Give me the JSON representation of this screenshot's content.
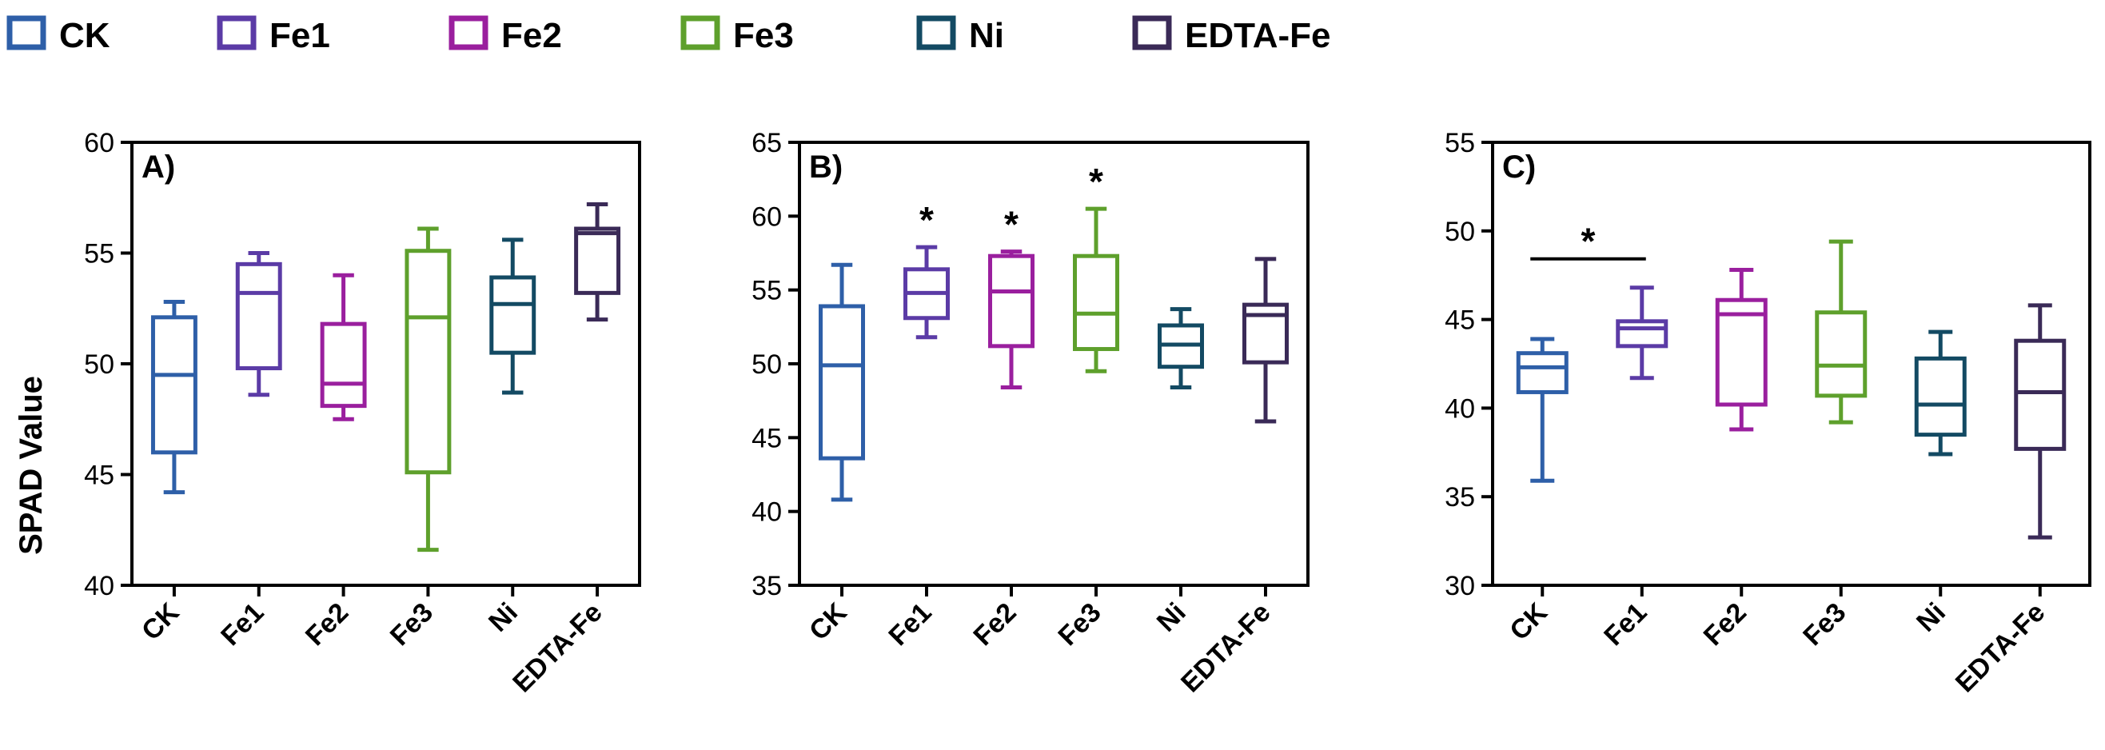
{
  "chart_data": {
    "type": "box",
    "legend": {
      "placement": "top",
      "entries": [
        {
          "name": "CK",
          "color": "#2E5FA8"
        },
        {
          "name": "Fe1",
          "color": "#5B3BA6"
        },
        {
          "name": "Fe2",
          "color": "#9A1F9E"
        },
        {
          "name": "Fe3",
          "color": "#5EA02C"
        },
        {
          "name": "Ni",
          "color": "#134A63"
        },
        {
          "name": "EDTA-Fe",
          "color": "#3A2A57"
        }
      ]
    },
    "ylabel": "SPAD Value",
    "categories": [
      "CK",
      "Fe1",
      "Fe2",
      "Fe3",
      "Ni",
      "EDTA-Fe"
    ],
    "panels": [
      {
        "label": "A)",
        "ylim": [
          40,
          60
        ],
        "yticks": [
          40,
          45,
          50,
          55,
          60
        ],
        "boxes": [
          {
            "min": 44.2,
            "q1": 46.0,
            "median": 49.5,
            "q3": 52.1,
            "max": 52.8
          },
          {
            "min": 48.6,
            "q1": 49.8,
            "median": 53.2,
            "q3": 54.5,
            "max": 55.0
          },
          {
            "min": 47.5,
            "q1": 48.1,
            "median": 49.1,
            "q3": 51.8,
            "max": 54.0
          },
          {
            "min": 41.6,
            "q1": 45.1,
            "median": 52.1,
            "q3": 55.1,
            "max": 56.1
          },
          {
            "min": 48.7,
            "q1": 50.5,
            "median": 52.7,
            "q3": 53.9,
            "max": 55.6
          },
          {
            "min": 52.0,
            "q1": 53.2,
            "median": 55.9,
            "q3": 56.1,
            "max": 57.2
          }
        ],
        "significance": []
      },
      {
        "label": "B)",
        "ylim": [
          35,
          65
        ],
        "yticks": [
          35,
          40,
          45,
          50,
          55,
          60,
          65
        ],
        "boxes": [
          {
            "min": 40.8,
            "q1": 43.6,
            "median": 49.9,
            "q3": 53.9,
            "max": 56.7
          },
          {
            "min": 51.8,
            "q1": 53.1,
            "median": 54.8,
            "q3": 56.4,
            "max": 57.9
          },
          {
            "min": 48.4,
            "q1": 51.2,
            "median": 54.9,
            "q3": 57.3,
            "max": 57.6
          },
          {
            "min": 49.5,
            "q1": 51.0,
            "median": 53.4,
            "q3": 57.3,
            "max": 60.5
          },
          {
            "min": 48.4,
            "q1": 49.8,
            "median": 51.3,
            "q3": 52.6,
            "max": 53.7
          },
          {
            "min": 46.1,
            "q1": 50.1,
            "median": 53.3,
            "q3": 54.0,
            "max": 57.1
          }
        ],
        "significance": [
          {
            "text": "*",
            "category": "Fe1"
          },
          {
            "text": "*",
            "category": "Fe2"
          },
          {
            "text": "*",
            "category": "Fe3"
          }
        ]
      },
      {
        "label": "C)",
        "ylim": [
          30,
          55
        ],
        "yticks": [
          30,
          35,
          40,
          45,
          50,
          55
        ],
        "boxes": [
          {
            "min": 35.9,
            "q1": 40.9,
            "median": 42.3,
            "q3": 43.1,
            "max": 43.9
          },
          {
            "min": 41.7,
            "q1": 43.5,
            "median": 44.5,
            "q3": 44.9,
            "max": 46.8
          },
          {
            "min": 38.8,
            "q1": 40.2,
            "median": 45.3,
            "q3": 46.1,
            "max": 47.8
          },
          {
            "min": 39.2,
            "q1": 40.7,
            "median": 42.4,
            "q3": 45.4,
            "max": 49.4
          },
          {
            "min": 37.4,
            "q1": 38.5,
            "median": 40.2,
            "q3": 42.8,
            "max": 44.3
          },
          {
            "min": 32.7,
            "q1": 37.7,
            "median": 40.9,
            "q3": 43.8,
            "max": 45.8
          }
        ],
        "significance": [
          {
            "text": "*",
            "from": "CK",
            "to": "Fe1"
          }
        ]
      }
    ]
  }
}
